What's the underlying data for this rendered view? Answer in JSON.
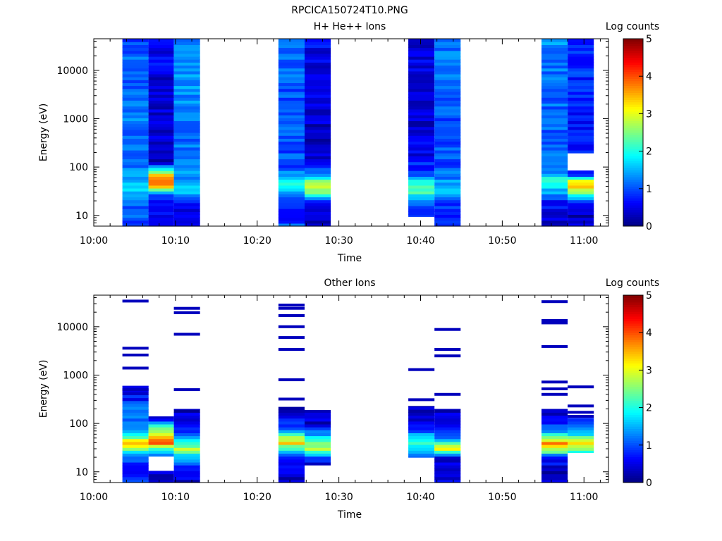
{
  "figure": {
    "title": "RPCICA150724T10.PNG"
  },
  "colorbar": {
    "label": "Log counts",
    "ticks": [
      0,
      1,
      2,
      3,
      4,
      5
    ]
  },
  "chart_data": [
    {
      "type": "heatmap",
      "title": "H+ He++ Ions",
      "xlabel": "Time",
      "ylabel": "Energy (eV)",
      "x_ticks": [
        "10:00",
        "10:10",
        "10:20",
        "10:30",
        "10:40",
        "10:50",
        "11:00"
      ],
      "xlim_minutes": [
        0,
        63
      ],
      "y_scale": "log",
      "ylim": [
        6,
        45000
      ],
      "y_ticks": [
        10,
        100,
        1000,
        10000
      ],
      "colorbar": {
        "label": "Log counts",
        "range": [
          0,
          5
        ]
      },
      "time_blocks": [
        {
          "start": 3.5,
          "end": 6.7,
          "ymin": 6,
          "profile": [
            [
              6,
              0.8
            ],
            [
              10,
              1.0
            ],
            [
              20,
              1.1
            ],
            [
              30,
              1.5
            ],
            [
              40,
              1.8
            ],
            [
              55,
              1.5
            ],
            [
              80,
              1.3
            ],
            [
              150,
              1.1
            ],
            [
              400,
              1.1
            ],
            [
              1000,
              1.2
            ],
            [
              5000,
              1.1
            ],
            [
              10000,
              1.1
            ],
            [
              30000,
              1.1
            ],
            [
              45000,
              1.0
            ]
          ]
        },
        {
          "start": 6.7,
          "end": 9.8,
          "ymin": 6,
          "profile": [
            [
              6,
              0.7
            ],
            [
              10,
              0.6
            ],
            [
              20,
              0.5
            ],
            [
              30,
              1.5
            ],
            [
              40,
              3.5
            ],
            [
              55,
              4.0
            ],
            [
              80,
              2.6
            ],
            [
              120,
              0.4
            ],
            [
              200,
              0.3
            ],
            [
              1000,
              0.4
            ],
            [
              5000,
              0.4
            ],
            [
              20000,
              0.6
            ],
            [
              45000,
              0.6
            ]
          ]
        },
        {
          "start": 9.8,
          "end": 13.0,
          "ymin": 6,
          "profile": [
            [
              6,
              0.5
            ],
            [
              10,
              0.4
            ],
            [
              20,
              0.8
            ],
            [
              30,
              1.6
            ],
            [
              40,
              1.8
            ],
            [
              55,
              1.4
            ],
            [
              100,
              1.2
            ],
            [
              500,
              1.2
            ],
            [
              3000,
              1.3
            ],
            [
              10000,
              1.3
            ],
            [
              45000,
              1.3
            ]
          ]
        },
        {
          "start": 22.6,
          "end": 25.8,
          "ymin": 6,
          "profile": [
            [
              6,
              1.2
            ],
            [
              10,
              0.6
            ],
            [
              20,
              0.9
            ],
            [
              30,
              1.4
            ],
            [
              40,
              2.0
            ],
            [
              55,
              1.6
            ],
            [
              100,
              1.0
            ],
            [
              500,
              1.0
            ],
            [
              2000,
              1.0
            ],
            [
              10000,
              1.1
            ],
            [
              45000,
              1.1
            ]
          ]
        },
        {
          "start": 25.8,
          "end": 29.0,
          "ymin": 6,
          "profile": [
            [
              6,
              0.3
            ],
            [
              10,
              0.3
            ],
            [
              20,
              0.9
            ],
            [
              30,
              2.6
            ],
            [
              40,
              3.0
            ],
            [
              55,
              2.2
            ],
            [
              80,
              1.2
            ],
            [
              120,
              0.5
            ],
            [
              300,
              0.3
            ],
            [
              2000,
              0.4
            ],
            [
              10000,
              0.5
            ],
            [
              45000,
              0.6
            ]
          ]
        },
        {
          "start": 38.5,
          "end": 41.7,
          "ymin": 9.5,
          "profile": [
            [
              9.5,
              0.6
            ],
            [
              15,
              0.7
            ],
            [
              20,
              1.2
            ],
            [
              30,
              2.2
            ],
            [
              40,
              2.2
            ],
            [
              55,
              1.7
            ],
            [
              80,
              0.9
            ],
            [
              200,
              0.5
            ],
            [
              1000,
              0.4
            ],
            [
              5000,
              0.5
            ],
            [
              45000,
              0.5
            ]
          ]
        },
        {
          "start": 41.7,
          "end": 44.9,
          "ymin": 6,
          "profile": [
            [
              6,
              0.7
            ],
            [
              10,
              0.8
            ],
            [
              20,
              1.0
            ],
            [
              30,
              1.7
            ],
            [
              40,
              1.7
            ],
            [
              55,
              1.3
            ],
            [
              100,
              1.0
            ],
            [
              500,
              1.0
            ],
            [
              5000,
              1.1
            ],
            [
              45000,
              1.2
            ]
          ]
        },
        {
          "start": 54.8,
          "end": 58.0,
          "ymin": 6,
          "profile": [
            [
              6,
              0.3
            ],
            [
              10,
              0.5
            ],
            [
              20,
              0.8
            ],
            [
              30,
              1.4
            ],
            [
              40,
              1.7
            ],
            [
              55,
              2.4
            ],
            [
              80,
              1.2
            ],
            [
              200,
              1.1
            ],
            [
              1000,
              1.1
            ],
            [
              5000,
              1.2
            ],
            [
              45000,
              1.3
            ]
          ]
        },
        {
          "start": 58.0,
          "end": 61.2,
          "ymin": 6,
          "profile": [
            [
              6,
              0.4
            ],
            [
              10,
              0.3
            ],
            [
              20,
              0.8
            ],
            [
              30,
              2.6
            ],
            [
              40,
              3.4
            ],
            [
              55,
              3.0
            ],
            [
              70,
              0.8
            ],
            [
              80,
              0.8
            ],
            [
              100,
              -1
            ],
            [
              200,
              0.7
            ],
            [
              1000,
              0.7
            ],
            [
              5000,
              0.8
            ],
            [
              45000,
              0.8
            ]
          ]
        }
      ]
    },
    {
      "type": "heatmap",
      "title": "Other Ions",
      "xlabel": "Time",
      "ylabel": "Energy (eV)",
      "x_ticks": [
        "10:00",
        "10:10",
        "10:20",
        "10:30",
        "10:40",
        "10:50",
        "11:00"
      ],
      "xlim_minutes": [
        0,
        63
      ],
      "y_scale": "log",
      "ylim": [
        6,
        45000
      ],
      "y_ticks": [
        10,
        100,
        1000,
        10000
      ],
      "colorbar": {
        "label": "Log counts",
        "range": [
          0,
          5
        ]
      },
      "time_blocks": [
        {
          "start": 3.5,
          "end": 6.7,
          "ymin": 6,
          "ymax": 600,
          "profile": [
            [
              6,
              1.0
            ],
            [
              10,
              0.6
            ],
            [
              20,
              1.0
            ],
            [
              30,
              2.5
            ],
            [
              40,
              3.5
            ],
            [
              55,
              2.3
            ],
            [
              80,
              1.0
            ],
            [
              150,
              1.3
            ],
            [
              300,
              0.8
            ],
            [
              600,
              0.3
            ]
          ],
          "lines": [
            34000,
            3600,
            2600,
            1400,
            500
          ]
        },
        {
          "start": 6.7,
          "end": 9.8,
          "ymin": 6,
          "ymax": 140,
          "profile": [
            [
              6,
              0.3
            ],
            [
              10,
              0.3
            ],
            [
              15,
              -1
            ],
            [
              20,
              0.8
            ],
            [
              30,
              2.0
            ],
            [
              40,
              4.2
            ],
            [
              55,
              3.0
            ],
            [
              80,
              2.5
            ],
            [
              120,
              0.5
            ],
            [
              140,
              0.3
            ]
          ],
          "lines": []
        },
        {
          "start": 9.8,
          "end": 13.0,
          "ymin": 6,
          "ymax": 200,
          "profile": [
            [
              6,
              0.3
            ],
            [
              10,
              0.6
            ],
            [
              20,
              1.4
            ],
            [
              30,
              2.8
            ],
            [
              40,
              2.2
            ],
            [
              55,
              1.2
            ],
            [
              100,
              0.6
            ],
            [
              200,
              0.3
            ]
          ],
          "lines": [
            24000,
            19500,
            7000,
            500
          ]
        },
        {
          "start": 22.6,
          "end": 25.8,
          "ymin": 6,
          "ymax": 220,
          "profile": [
            [
              6,
              0.3
            ],
            [
              10,
              0.4
            ],
            [
              20,
              0.8
            ],
            [
              30,
              2.0
            ],
            [
              40,
              3.3
            ],
            [
              55,
              2.4
            ],
            [
              80,
              0.8
            ],
            [
              200,
              0.4
            ]
          ],
          "lines": [
            28000,
            24000,
            17000,
            10000,
            6000,
            3400,
            800,
            320
          ]
        },
        {
          "start": 25.8,
          "end": 29.0,
          "ymin": 6,
          "ymax": 190,
          "profile": [
            [
              6,
              0.3
            ],
            [
              10,
              -1
            ],
            [
              14,
              0.4
            ],
            [
              20,
              1.0
            ],
            [
              30,
              2.8
            ],
            [
              40,
              2.4
            ],
            [
              55,
              1.5
            ],
            [
              70,
              1.2
            ],
            [
              100,
              0.4
            ],
            [
              190,
              0.3
            ]
          ],
          "lines": []
        },
        {
          "start": 38.5,
          "end": 41.7,
          "ymin": 20,
          "ymax": 230,
          "profile": [
            [
              20,
              0.8
            ],
            [
              30,
              1.6
            ],
            [
              40,
              2.0
            ],
            [
              55,
              1.5
            ],
            [
              100,
              0.6
            ],
            [
              230,
              0.3
            ]
          ],
          "lines": [
            1300,
            310
          ]
        },
        {
          "start": 41.7,
          "end": 44.9,
          "ymin": 6,
          "ymax": 200,
          "profile": [
            [
              6,
              0.5
            ],
            [
              20,
              0.5
            ],
            [
              30,
              3.2
            ],
            [
              40,
              2.2
            ],
            [
              55,
              1.0
            ],
            [
              100,
              0.6
            ],
            [
              200,
              0.3
            ]
          ],
          "lines": [
            8800,
            3400,
            2500,
            400
          ]
        },
        {
          "start": 54.8,
          "end": 58.0,
          "ymin": 6,
          "ymax": 200,
          "profile": [
            [
              6,
              0.3
            ],
            [
              10,
              0.3
            ],
            [
              20,
              0.8
            ],
            [
              30,
              3.0
            ],
            [
              40,
              3.8
            ],
            [
              55,
              2.2
            ],
            [
              80,
              1.0
            ],
            [
              200,
              0.3
            ]
          ],
          "lines": [
            33000,
            13500,
            12000,
            3900,
            720,
            520,
            400
          ]
        },
        {
          "start": 58.0,
          "end": 61.2,
          "ymin": 25,
          "ymax": 130,
          "profile": [
            [
              25,
              1.5
            ],
            [
              30,
              2.5
            ],
            [
              40,
              3.6
            ],
            [
              55,
              2.0
            ],
            [
              80,
              1.2
            ],
            [
              130,
              0.6
            ]
          ],
          "lines": [
            570,
            230,
            170,
            140
          ]
        }
      ]
    }
  ]
}
